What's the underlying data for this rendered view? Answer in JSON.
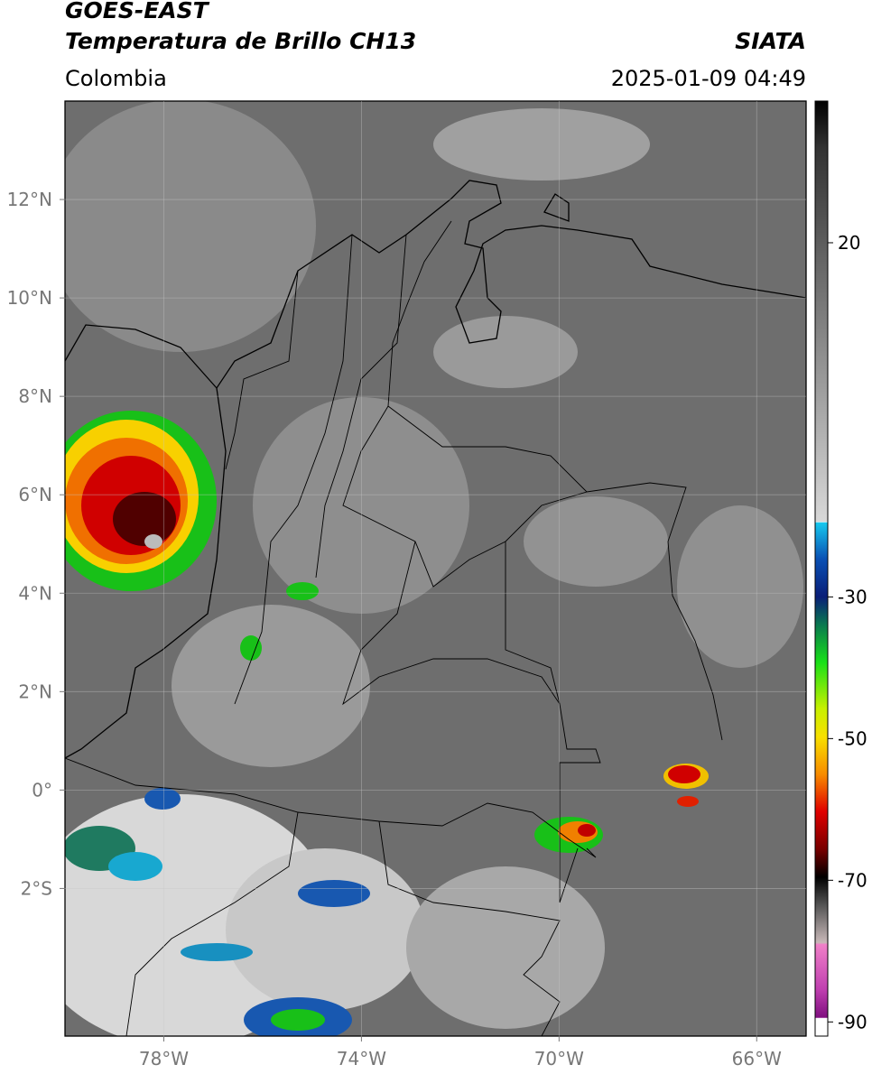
{
  "header": {
    "title": "GOES-EAST",
    "subtitle": "Temperatura de Brillo CH13",
    "region": "Colombia",
    "source": "SIATA",
    "datetime": "2025-01-09 04:49"
  },
  "map": {
    "lonlim": [
      -80,
      -65
    ],
    "latlim": [
      -5,
      14
    ],
    "lon_ticks": [
      {
        "value": -78,
        "label": "78°W"
      },
      {
        "value": -74,
        "label": "74°W"
      },
      {
        "value": -70,
        "label": "70°W"
      },
      {
        "value": -66,
        "label": "66°W"
      }
    ],
    "lat_ticks": [
      {
        "value": 12,
        "label": "12°N"
      },
      {
        "value": 10,
        "label": "10°N"
      },
      {
        "value": 8,
        "label": "8°N"
      },
      {
        "value": 6,
        "label": "6°N"
      },
      {
        "value": 4,
        "label": "4°N"
      },
      {
        "value": 2,
        "label": "2°N"
      },
      {
        "value": 0,
        "label": "0°"
      },
      {
        "value": -2,
        "label": "2°S"
      }
    ]
  },
  "colorbar": {
    "lim": [
      -92,
      40
    ],
    "ticks": [
      20,
      -30,
      -50,
      -70,
      -90
    ]
  }
}
